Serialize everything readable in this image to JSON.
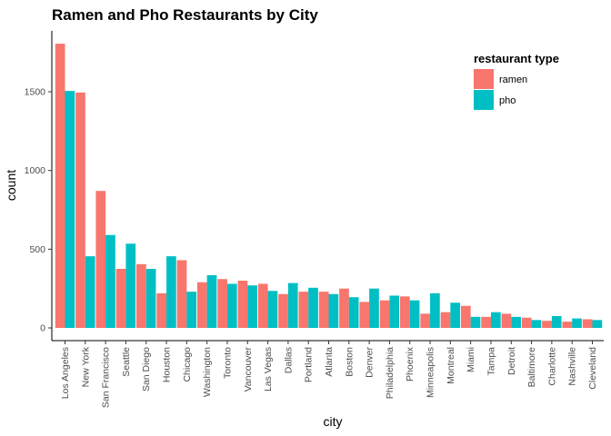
{
  "chart_data": {
    "type": "bar",
    "title": "Ramen and Pho Restaurants by City",
    "xlabel": "city",
    "ylabel": "count",
    "ylim": [
      0,
      1850
    ],
    "yticks": [
      0,
      500,
      1000,
      1500
    ],
    "grid": false,
    "legend": {
      "title": "restaurant type",
      "placement": "top-right"
    },
    "categories": [
      "Los Angeles",
      "New York",
      "San Francisco",
      "Seattle",
      "San Diego",
      "Houston",
      "Chicago",
      "Washington",
      "Toronto",
      "Vancouver",
      "Las Vegas",
      "Dallas",
      "Portland",
      "Atlanta",
      "Boston",
      "Denver",
      "Philadelphia",
      "Phoenix",
      "Minneapolis",
      "Montreal",
      "Miami",
      "Tampa",
      "Detroit",
      "Baltimore",
      "Charlotte",
      "Nashville",
      "Cleveland"
    ],
    "series": [
      {
        "name": "ramen",
        "color": "#F8766D",
        "values": [
          1805,
          1495,
          870,
          375,
          405,
          220,
          430,
          290,
          310,
          300,
          280,
          215,
          230,
          230,
          250,
          165,
          175,
          200,
          90,
          100,
          140,
          70,
          90,
          65,
          45,
          40,
          55
        ]
      },
      {
        "name": "pho",
        "color": "#00BFC4",
        "values": [
          1505,
          455,
          590,
          535,
          375,
          455,
          230,
          335,
          280,
          270,
          235,
          285,
          255,
          215,
          195,
          250,
          205,
          175,
          220,
          160,
          70,
          100,
          70,
          50,
          75,
          60,
          50
        ]
      }
    ]
  }
}
